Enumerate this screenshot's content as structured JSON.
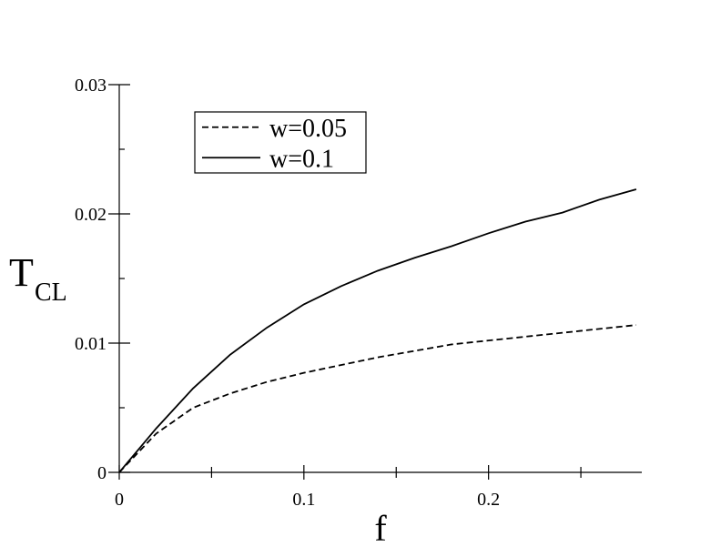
{
  "chart_data": {
    "type": "line",
    "xlabel": "f",
    "ylabel": "T",
    "ylabel_sub": "CL",
    "x": [
      0,
      0.02,
      0.04,
      0.06,
      0.08,
      0.1,
      0.12,
      0.14,
      0.16,
      0.18,
      0.2,
      0.22,
      0.24,
      0.26,
      0.28
    ],
    "series": [
      {
        "name": "w=0.05",
        "color": "#000000",
        "dash": true,
        "values": [
          0,
          0.003,
          0.005,
          0.0061,
          0.007,
          0.0077,
          0.0083,
          0.0089,
          0.0094,
          0.0099,
          0.0102,
          0.0105,
          0.0108,
          0.0111,
          0.0114
        ]
      },
      {
        "name": "w=0.1",
        "color": "#000000",
        "dash": false,
        "values": [
          0,
          0.0034,
          0.0065,
          0.0091,
          0.0112,
          0.013,
          0.0144,
          0.0156,
          0.0166,
          0.0175,
          0.0185,
          0.0194,
          0.0201,
          0.0211,
          0.0219
        ]
      }
    ],
    "xlim": [
      0,
      0.283
    ],
    "ylim": [
      0,
      0.03
    ],
    "xticks": [
      0,
      0.1,
      0.2
    ],
    "yticks": [
      0,
      0.01,
      0.02,
      0.03
    ],
    "xminorticks": [
      0.05,
      0.15,
      0.25
    ],
    "yminorticks": [
      0.005,
      0.015,
      0.025
    ],
    "legend": "upper left"
  }
}
